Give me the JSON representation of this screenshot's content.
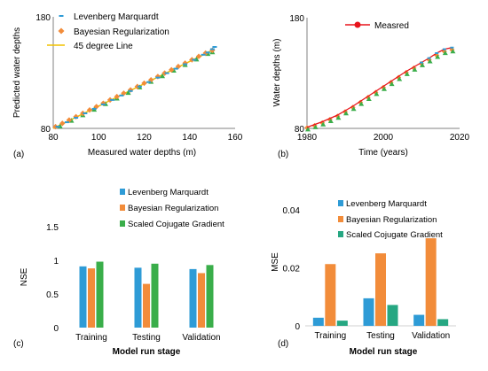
{
  "colors": {
    "blue": "#2E9BD6",
    "orange": "#F28C3A",
    "green": "#3AAE4A",
    "teal": "#26A782",
    "yellow": "#F2C200",
    "red": "#E8131B",
    "axis": "#808080"
  },
  "chart_data": [
    {
      "panel": "(a)",
      "type": "scatter",
      "xlabel": "Measured water depths (m)",
      "ylabel": "Predicted water depths",
      "xlim": [
        80,
        160
      ],
      "ylim": [
        80,
        180
      ],
      "xticks": [
        "80",
        "100",
        "120",
        "140",
        "160"
      ],
      "yticks": [
        "80",
        "180"
      ],
      "legend_position": "top-left",
      "series": [
        {
          "name": "Levenberg Marquardt",
          "marker": "dash",
          "x": [
            82,
            86,
            90,
            94,
            98,
            102,
            106,
            110,
            114,
            118,
            122,
            126,
            130,
            134,
            138,
            142,
            146,
            148,
            150,
            151
          ],
          "y": [
            81.5,
            85.5,
            89.5,
            93.5,
            97.5,
            101.5,
            105.5,
            109.5,
            113.5,
            117.5,
            121.5,
            125.5,
            129.5,
            133.5,
            137.5,
            141.5,
            146,
            148,
            151,
            153
          ]
        },
        {
          "name": "Bayesian Regularization",
          "marker": "diamond",
          "x": [
            81,
            84,
            87,
            90,
            93,
            96,
            99,
            102,
            105,
            108,
            111,
            114,
            117,
            120,
            123,
            126,
            129,
            132,
            135,
            138,
            141,
            144,
            147,
            150
          ],
          "y": [
            81.5,
            84.5,
            87.5,
            90.5,
            93.5,
            96.5,
            99.5,
            102.5,
            105.5,
            108.5,
            111.5,
            114.5,
            117.5,
            120.5,
            123.5,
            126.5,
            129.5,
            132.5,
            135.5,
            138.5,
            141.5,
            144.5,
            147.5,
            150
          ]
        },
        {
          "name": "",
          "marker": "triangle",
          "x": [
            83,
            88,
            93,
            98,
            103,
            108,
            113,
            118,
            123,
            128,
            133,
            138,
            143,
            148,
            150
          ],
          "y": [
            82,
            87,
            92,
            97,
            102,
            107,
            112,
            117,
            122,
            127,
            132,
            137,
            142,
            147,
            148.5
          ]
        },
        {
          "name": "45 degree Line",
          "marker": "line",
          "x": [
            80,
            150
          ],
          "y": [
            80,
            150
          ]
        }
      ]
    },
    {
      "panel": "(b)",
      "type": "line",
      "xlabel": "Time (years)",
      "ylabel": "Water depths (m)",
      "xlim": [
        1980,
        2020
      ],
      "ylim": [
        80,
        180
      ],
      "xticks": [
        "1980",
        "2000",
        "2020"
      ],
      "yticks": [
        "80",
        "180"
      ],
      "legend_position": "top",
      "series": [
        {
          "name": "Measred",
          "x": [
            1980,
            1982,
            1984,
            1986,
            1988,
            1990,
            1992,
            1994,
            1996,
            1998,
            2000,
            2002,
            2004,
            2006,
            2008,
            2010,
            2012,
            2014,
            2016,
            2018
          ],
          "y": [
            81,
            83.5,
            86,
            89,
            92,
            96,
            100,
            104.5,
            109,
            113.5,
            118,
            122.5,
            127,
            131.5,
            135.5,
            139.5,
            143.5,
            148,
            151.5,
            153
          ]
        },
        {
          "name": "",
          "x": [
            1980,
            1982,
            1984,
            1986,
            1988,
            1990,
            1992,
            1994,
            1996,
            1998,
            2000,
            2002,
            2004,
            2006,
            2008,
            2010,
            2012,
            2014,
            2016,
            2018
          ],
          "y": [
            80.5,
            82.5,
            85,
            88,
            91,
            95,
            99,
            103.5,
            108,
            112.5,
            117,
            121.5,
            126,
            130.5,
            134.5,
            138.5,
            142,
            146,
            149.5,
            151
          ]
        }
      ]
    },
    {
      "panel": "(c)",
      "type": "bar",
      "xlabel": "Model run stage",
      "ylabel": "NSE",
      "ylim": [
        0,
        1.5
      ],
      "yticks": [
        "0",
        "0.5",
        "1",
        "1.5"
      ],
      "categories": [
        "Training",
        "Testing",
        "Validation"
      ],
      "legend_position": "top",
      "series": [
        {
          "name": "Levenberg Marquardt",
          "values": [
            0.91,
            0.89,
            0.87
          ]
        },
        {
          "name": "Bayesian Regularization",
          "values": [
            0.88,
            0.65,
            0.81
          ]
        },
        {
          "name": "Scaled Cojugate Gradient",
          "values": [
            0.98,
            0.95,
            0.93
          ]
        }
      ]
    },
    {
      "panel": "(d)",
      "type": "bar",
      "xlabel": "Model run stage",
      "ylabel": "MSE",
      "ylim": [
        0,
        0.04
      ],
      "yticks": [
        "0",
        "0.02",
        "0.04"
      ],
      "categories": [
        "Training",
        "Testing",
        "Validation"
      ],
      "legend_position": "top",
      "series": [
        {
          "name": "Levenberg Marquardt",
          "values": [
            0.0028,
            0.0095,
            0.0038
          ]
        },
        {
          "name": "Bayesian Regularization",
          "values": [
            0.0213,
            0.025,
            0.0302
          ]
        },
        {
          "name": "Scaled Cojugate Gradient",
          "values": [
            0.0018,
            0.0072,
            0.0023
          ]
        }
      ]
    }
  ]
}
